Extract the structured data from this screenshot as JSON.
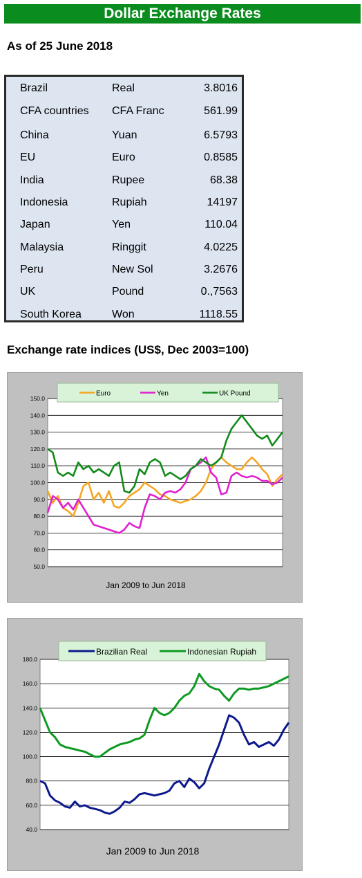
{
  "header": {
    "title": "Dollar Exchange Rates",
    "as_of": "As of 25 June 2018"
  },
  "rates": [
    {
      "country": "Brazil",
      "currency": "Real",
      "value": "3.8016"
    },
    {
      "country": "CFA countries",
      "currency": "CFA Franc",
      "value": "561.99"
    },
    {
      "country": "China",
      "currency": "Yuan",
      "value": "6.5793"
    },
    {
      "country": "EU",
      "currency": "Euro",
      "value": "0.8585"
    },
    {
      "country": "India",
      "currency": "Rupee",
      "value": "68.38"
    },
    {
      "country": "Indonesia",
      "currency": "Rupiah",
      "value": "14197"
    },
    {
      "country": "Japan",
      "currency": "Yen",
      "value": "110.04"
    },
    {
      "country": "Malaysia",
      "currency": "Ringgit",
      "value": "4.0225"
    },
    {
      "country": "Peru",
      "currency": "New Sol",
      "value": "3.2676"
    },
    {
      "country": "UK",
      "currency": "Pound",
      "value": "0.,7563"
    },
    {
      "country": "South Korea",
      "currency": "Won",
      "value": "1118.55"
    }
  ],
  "indices_title": "Exchange rate indices (US$, Dec 2003=100)",
  "chart_data": [
    {
      "type": "line",
      "xlabel": "Jan 2009  to Jun 2018",
      "ylim": [
        50,
        150
      ],
      "yticks": [
        "150.0",
        "140.0",
        "130.0",
        "120.0",
        "110.0",
        "100.0",
        "90.0",
        "80.0",
        "70.0",
        "60.0",
        "50.0"
      ],
      "grid": true,
      "legend": "top",
      "x_start": 2009.0,
      "x_end": 2018.5,
      "series": [
        {
          "name": "Euro",
          "color": "#f5a623",
          "values": [
            95,
            88,
            92,
            85,
            83,
            80,
            88,
            98,
            100,
            90,
            94,
            88,
            95,
            86,
            85,
            88,
            92,
            94,
            96,
            100,
            98,
            96,
            93,
            92,
            90,
            89,
            88,
            89,
            90,
            92,
            95,
            100,
            108,
            112,
            115,
            112,
            110,
            108,
            108,
            112,
            115,
            112,
            108,
            105,
            98,
            102,
            105
          ]
        },
        {
          "name": "Yen",
          "color": "#e020d0",
          "values": [
            82,
            92,
            90,
            85,
            88,
            84,
            90,
            85,
            80,
            75,
            74,
            73,
            72,
            71,
            70,
            72,
            76,
            74,
            73,
            85,
            93,
            92,
            90,
            94,
            95,
            94,
            96,
            100,
            108,
            110,
            112,
            115,
            106,
            103,
            93,
            94,
            104,
            106,
            104,
            103,
            104,
            103,
            101,
            101,
            99,
            100,
            103
          ]
        },
        {
          "name": "UK Pound",
          "color": "#118a1a",
          "values": [
            120,
            118,
            106,
            104,
            106,
            104,
            112,
            108,
            110,
            106,
            108,
            106,
            104,
            110,
            112,
            95,
            94,
            98,
            108,
            105,
            112,
            114,
            112,
            104,
            106,
            104,
            102,
            104,
            108,
            110,
            114,
            112,
            110,
            112,
            115,
            125,
            132,
            136,
            140,
            136,
            132,
            128,
            126,
            128,
            122,
            126,
            130
          ]
        }
      ]
    },
    {
      "type": "line",
      "xlabel": "Jan 2009  to Jun 2018",
      "ylim": [
        40,
        180
      ],
      "yticks": [
        "180.0",
        "160.0",
        "140.0",
        "120.0",
        "100.0",
        "80.0",
        "60.0",
        "40.0"
      ],
      "grid": true,
      "legend": "top",
      "x_start": 2009.0,
      "x_end": 2018.5,
      "series": [
        {
          "name": "Brazilian Real",
          "color": "#0d1a8c",
          "values": [
            80,
            78,
            68,
            64,
            62,
            59,
            58,
            63,
            59,
            60,
            58,
            57,
            56,
            54,
            53,
            55,
            58,
            63,
            62,
            65,
            69,
            70,
            69,
            68,
            69,
            70,
            72,
            78,
            80,
            75,
            82,
            79,
            74,
            78,
            90,
            100,
            110,
            122,
            134,
            132,
            128,
            118,
            110,
            112,
            108,
            110,
            112,
            109,
            114,
            122,
            128
          ]
        },
        {
          "name": "Indonesian Rupiah",
          "color": "#0e9a22",
          "values": [
            140,
            130,
            120,
            116,
            110,
            108,
            107,
            106,
            105,
            104,
            102,
            100,
            100,
            103,
            106,
            108,
            110,
            111,
            112,
            114,
            115,
            118,
            130,
            140,
            136,
            134,
            136,
            140,
            146,
            150,
            152,
            158,
            168,
            162,
            158,
            156,
            155,
            150,
            146,
            152,
            156,
            156,
            155,
            156,
            156,
            157,
            158,
            160,
            162,
            164,
            166
          ]
        }
      ]
    }
  ]
}
